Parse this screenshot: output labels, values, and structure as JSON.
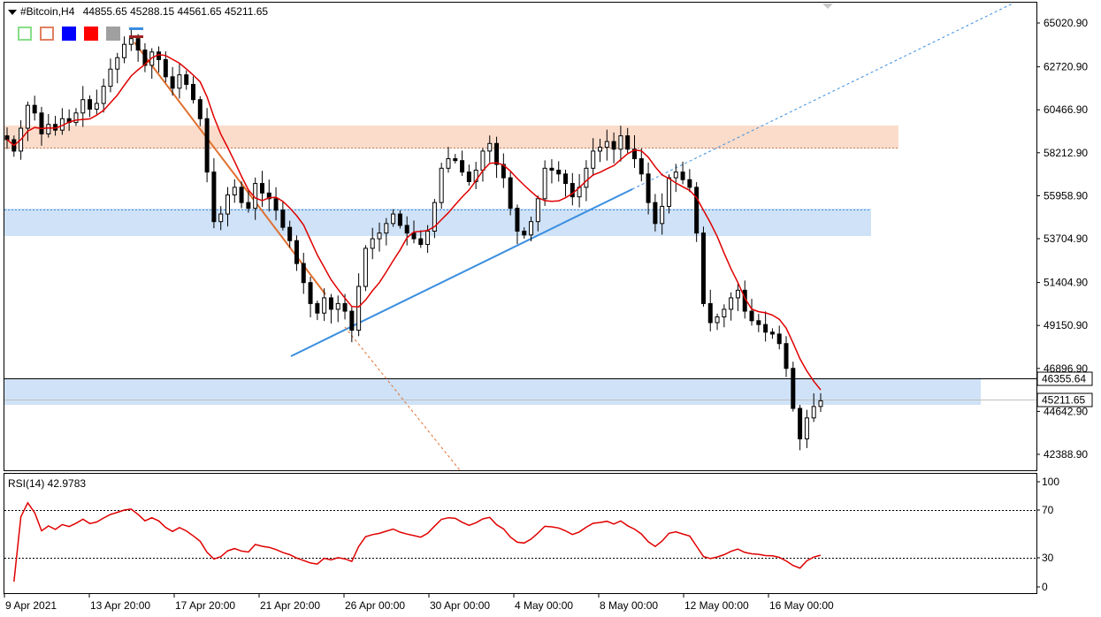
{
  "header": {
    "symbol": "#Bitcoin,H4",
    "open": "44855.65",
    "high": "45288.15",
    "low": "44561.65",
    "close": "45211.65"
  },
  "toolbar": {
    "colors": [
      "#66cc66",
      "#e07040",
      "#0000ff",
      "#ff0000",
      "#a0a0a0"
    ],
    "icons": [
      "light-green-square-icon",
      "orange-square-icon",
      "blue-square-icon",
      "red-square-icon",
      "gray-square-icon",
      "line-style-icon"
    ]
  },
  "price_axis": {
    "ticks": [
      "65020.90",
      "62720.90",
      "60466.90",
      "58212.90",
      "55958.90",
      "53704.90",
      "51404.90",
      "49150.90",
      "46896.90",
      "44642.90",
      "42388.90"
    ],
    "tick_values": [
      65020.9,
      62720.9,
      60466.9,
      58212.9,
      55958.9,
      53704.9,
      51404.9,
      49150.9,
      46896.9,
      44642.9,
      42388.9
    ],
    "marker_resistance": "46355.64",
    "marker_current": "45211.65"
  },
  "rsi": {
    "label": "RSI(14) 42.9783",
    "axis_ticks": [
      "100",
      "70",
      "30",
      "0"
    ],
    "levels": [
      70,
      30
    ]
  },
  "time_axis": {
    "labels": [
      "9 Apr 2021",
      "13 Apr 20:00",
      "17 Apr 20:00",
      "21 Apr 20:00",
      "26 Apr 00:00",
      "30 Apr 00:00",
      "4 May 00:00",
      "8 May 00:00",
      "12 May 00:00",
      "16 May 00:00"
    ]
  },
  "colors": {
    "ma_line": "#e00000",
    "trend_line": "#3a8ee0",
    "orange_line": "#e07030",
    "zone_blue": "#cfe2f7",
    "zone_orange": "#fbdccb",
    "rsi_line": "#e00000",
    "candle": "#000000"
  },
  "chart_data": {
    "type": "line",
    "title": "",
    "close_series": [
      58900,
      58300,
      59500,
      60700,
      60300,
      59200,
      59700,
      59400,
      60000,
      59800,
      60300,
      61000,
      60500,
      60800,
      61700,
      62600,
      63200,
      63900,
      64200,
      63600,
      62800,
      63500,
      63100,
      62200,
      61600,
      62300,
      61800,
      61000,
      60000,
      57200,
      54600,
      55000,
      56000,
      56400,
      55600,
      55300,
      56600,
      56100,
      55800,
      55200,
      54300,
      53600,
      52400,
      51400,
      50300,
      49800,
      50600,
      50000,
      50300,
      49900,
      48900,
      51200,
      53200,
      53700,
      54000,
      54500,
      55000,
      54400,
      54000,
      53700,
      53400,
      54100,
      55600,
      57400,
      57900,
      57800,
      57200,
      56700,
      57300,
      58300,
      58700,
      57600,
      56900,
      55300,
      54100,
      53900,
      54600,
      55800,
      57400,
      57300,
      57100,
      56600,
      55900,
      56400,
      57400,
      58300,
      58500,
      58800,
      58400,
      59100,
      58400,
      57900,
      57100,
      55600,
      54500,
      55400,
      56900,
      57200,
      56800,
      56400,
      54000,
      50300,
      49300,
      49600,
      50000,
      50600,
      51000,
      49900,
      49400,
      49200,
      48800,
      48700,
      48200,
      46900,
      44800,
      43200,
      44300,
      44900,
      45200
    ]
  }
}
